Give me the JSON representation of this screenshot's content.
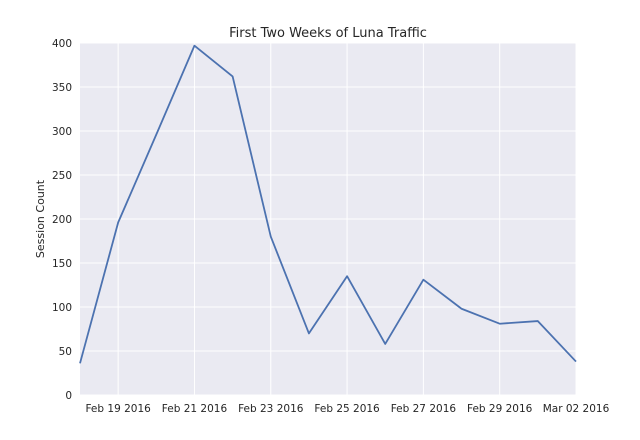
{
  "chart_data": {
    "type": "line",
    "title": "First Two Weeks of Luna Traffic",
    "xlabel": "",
    "ylabel": "Session Count",
    "ylim": [
      0,
      400
    ],
    "yticks": [
      0,
      50,
      100,
      150,
      200,
      250,
      300,
      350,
      400
    ],
    "xlim": [
      "2016-02-18",
      "2016-03-02"
    ],
    "xticks": [
      "Feb 19 2016",
      "Feb 21 2016",
      "Feb 23 2016",
      "Feb 25 2016",
      "Feb 27 2016",
      "Feb 29 2016",
      "Mar 02 2016"
    ],
    "grid": true,
    "series": [
      {
        "color": "#4c72b0",
        "x": [
          "2016-02-18",
          "2016-02-19",
          "2016-02-20",
          "2016-02-21",
          "2016-02-22",
          "2016-02-23",
          "2016-02-24",
          "2016-02-25",
          "2016-02-26",
          "2016-02-27",
          "2016-02-28",
          "2016-02-29",
          "2016-03-01",
          "2016-03-02"
        ],
        "values": [
          36,
          196,
          296,
          397,
          362,
          180,
          70,
          135,
          58,
          131,
          98,
          81,
          84,
          38
        ]
      }
    ]
  }
}
